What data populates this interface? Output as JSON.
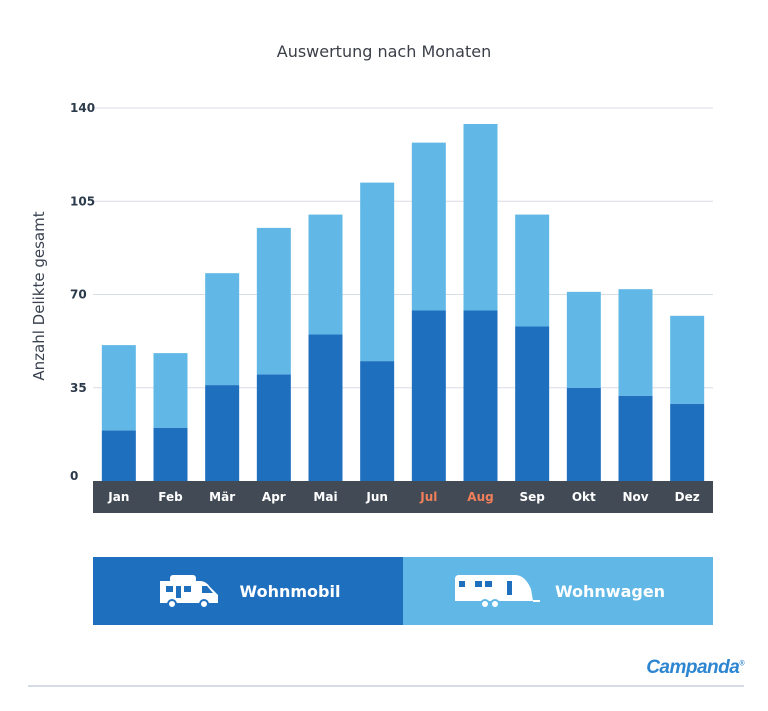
{
  "chart_data": {
    "type": "bar",
    "stacked": true,
    "title": "Auswertung nach Monaten",
    "ylabel": "Anzahl Delikte gesamt",
    "ylim": [
      0,
      140
    ],
    "yticks": [
      0,
      35,
      70,
      105,
      140
    ],
    "grid": true,
    "categories": [
      "Jan",
      "Feb",
      "Mär",
      "Apr",
      "Mai",
      "Jun",
      "Jul",
      "Aug",
      "Sep",
      "Okt",
      "Nov",
      "Dez"
    ],
    "highlighted_categories": [
      "Jul",
      "Aug"
    ],
    "series": [
      {
        "name": "Wohnmobil",
        "color": "#1f6fbf",
        "values": [
          19,
          20,
          36,
          40,
          55,
          45,
          64,
          64,
          58,
          35,
          32,
          29
        ]
      },
      {
        "name": "Wohnwagen",
        "color": "#61b8e6",
        "values": [
          32,
          28,
          42,
          55,
          45,
          67,
          63,
          70,
          42,
          36,
          40,
          33
        ]
      }
    ],
    "axis_bar_color": "#414a55",
    "highlight_color": "#f07f5a"
  },
  "legend": {
    "wohnmobil_label": "Wohnmobil",
    "wohnwagen_label": "Wohnwagen",
    "wohnmobil_icon": "motorhome-icon",
    "wohnwagen_icon": "caravan-icon"
  },
  "brand": {
    "name": "Campanda",
    "mark": "®"
  }
}
